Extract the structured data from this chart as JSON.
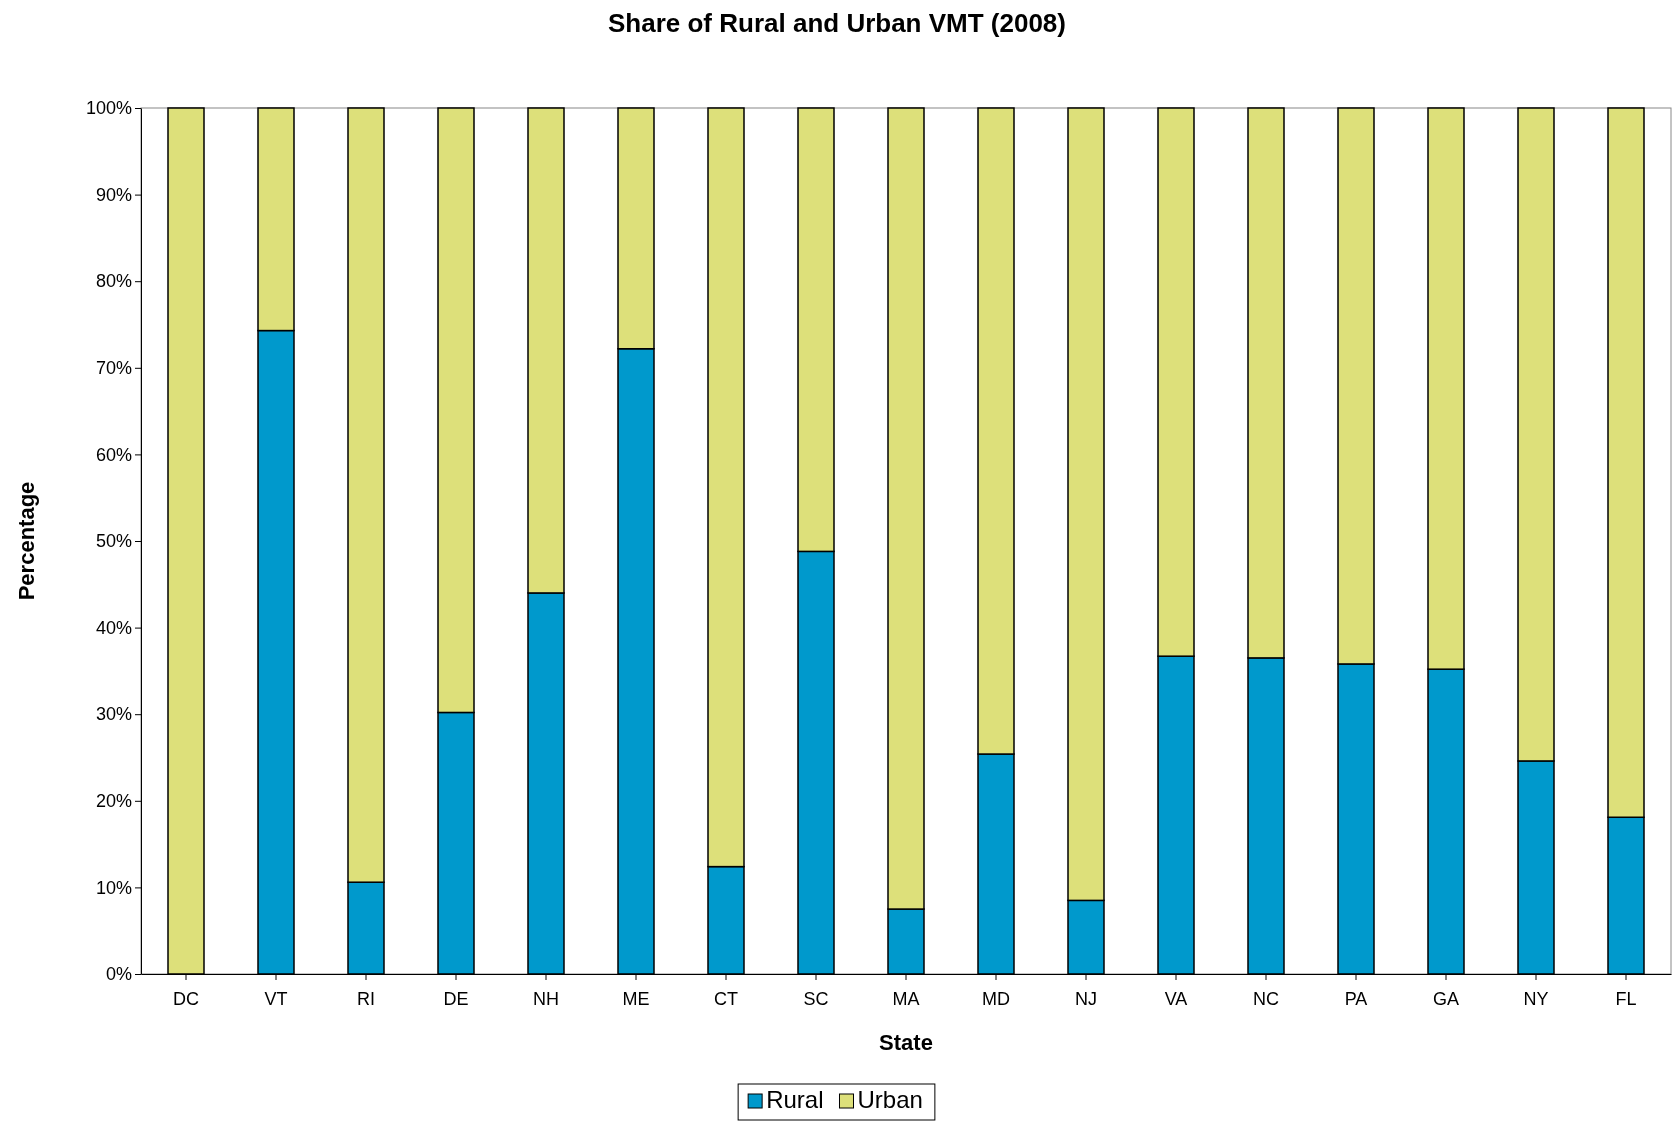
{
  "chart_data": {
    "type": "bar",
    "title": "Share of Rural and Urban VMT (2008)",
    "xlabel": "State",
    "ylabel": "Percentage",
    "stacked": true,
    "legend": "bottom",
    "categories": [
      "DC",
      "VT",
      "RI",
      "DE",
      "NH",
      "ME",
      "CT",
      "SC",
      "MA",
      "MD",
      "NJ",
      "VA",
      "NC",
      "PA",
      "GA",
      "NY",
      "FL"
    ],
    "series": [
      {
        "name": "Rural",
        "color": "#0099cc",
        "values": [
          0,
          74.3,
          10.6,
          30.2,
          44.0,
          72.2,
          12.4,
          48.8,
          7.5,
          25.4,
          8.5,
          36.7,
          36.5,
          35.8,
          35.2,
          24.6,
          18.1
        ]
      },
      {
        "name": "Urban",
        "color": "#dde07a",
        "values": [
          100,
          25.7,
          89.4,
          69.8,
          56.0,
          27.8,
          87.6,
          51.2,
          92.5,
          74.6,
          91.5,
          63.3,
          63.5,
          64.2,
          64.8,
          75.4,
          81.9
        ]
      }
    ],
    "ylim": [
      0,
      100
    ],
    "yticks": [
      {
        "value": 0,
        "label": "0%"
      },
      {
        "value": 10,
        "label": "10%"
      },
      {
        "value": 20,
        "label": "20%"
      },
      {
        "value": 30,
        "label": "30%"
      },
      {
        "value": 40,
        "label": "40%"
      },
      {
        "value": 50,
        "label": "50%"
      },
      {
        "value": 60,
        "label": "60%"
      },
      {
        "value": 70,
        "label": "70%"
      },
      {
        "value": 80,
        "label": "80%"
      },
      {
        "value": 90,
        "label": "90%"
      },
      {
        "value": 100,
        "label": "100%"
      }
    ]
  }
}
